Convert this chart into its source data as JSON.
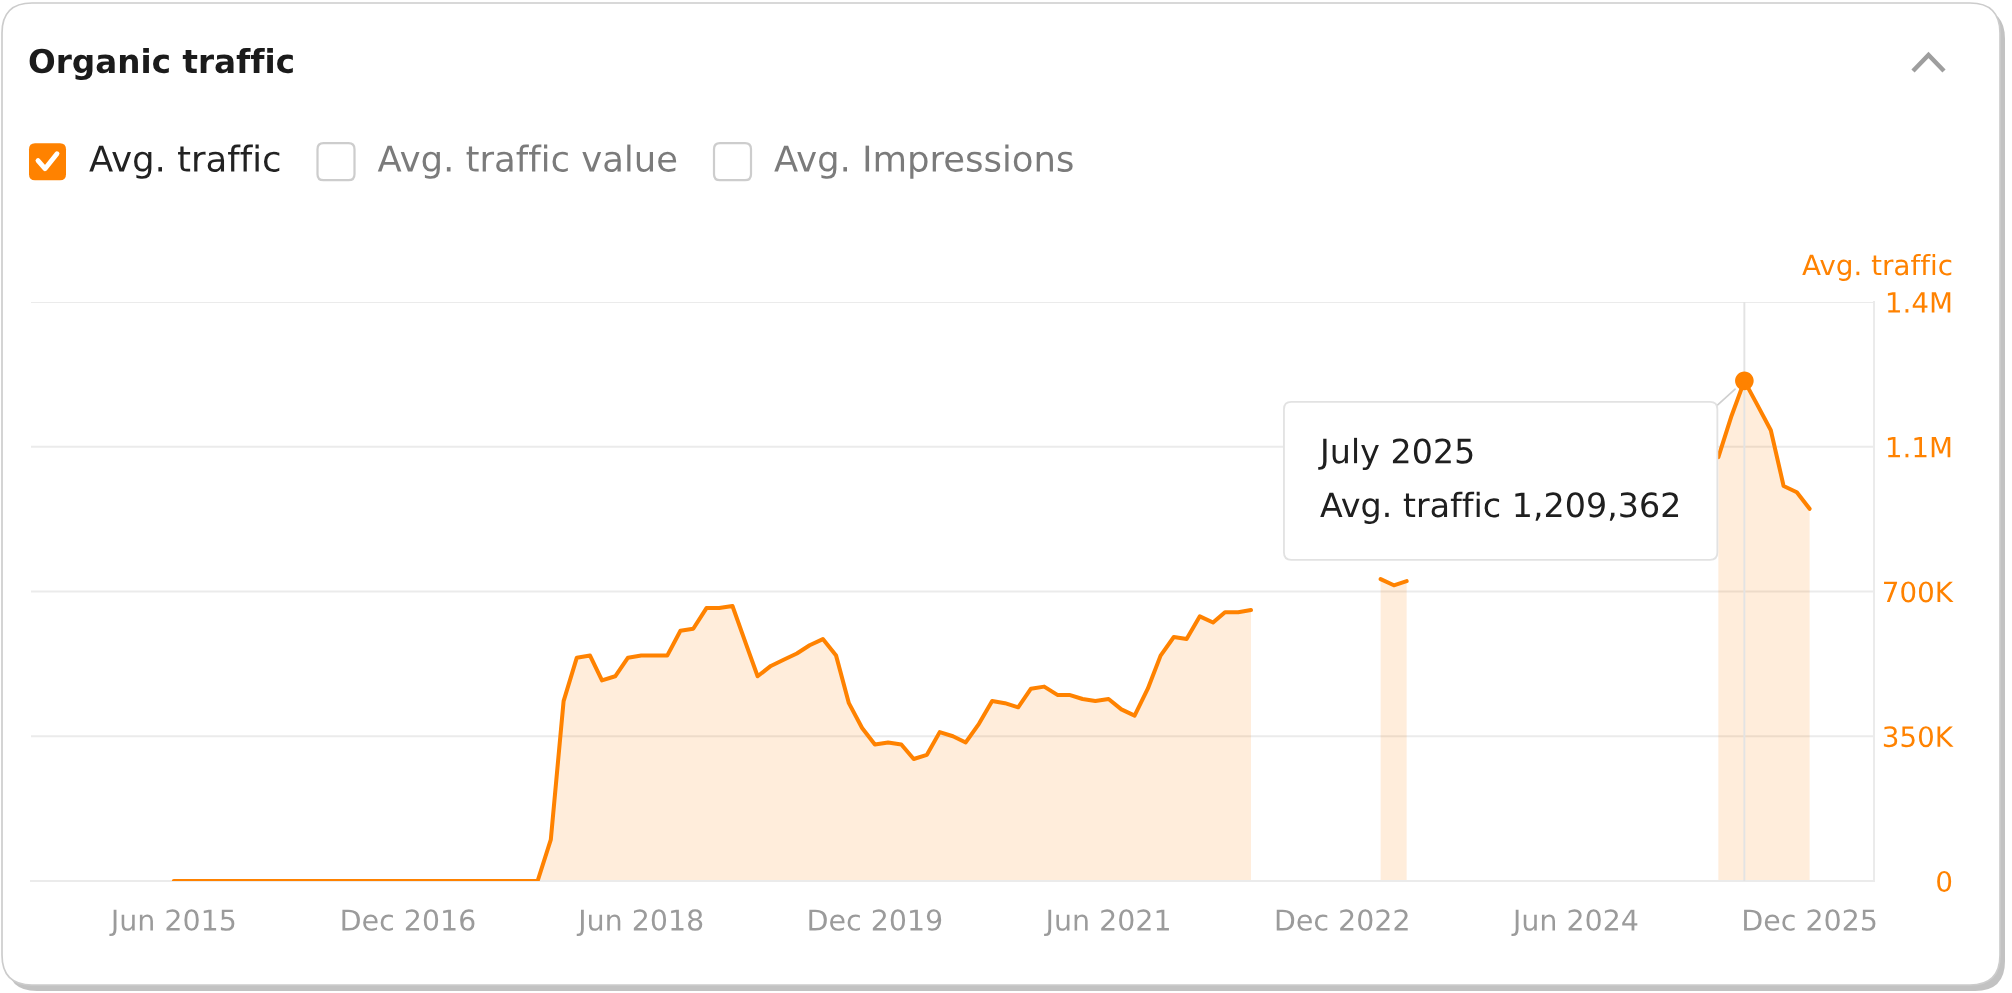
{
  "chart_data": {
    "type": "area",
    "title": "Organic traffic",
    "ylabel": "Avg. traffic",
    "xlim": [
      "2014-07",
      "2026-05"
    ],
    "xticks": [
      {
        "value": "2015-06",
        "label": "Jun 2015"
      },
      {
        "value": "2016-12",
        "label": "Dec 2016"
      },
      {
        "value": "2018-06",
        "label": "Jun 2018"
      },
      {
        "value": "2019-12",
        "label": "Dec 2019"
      },
      {
        "value": "2021-06",
        "label": "Jun 2021"
      },
      {
        "value": "2022-12",
        "label": "Dec 2022"
      },
      {
        "value": "2024-06",
        "label": "Jun 2024"
      },
      {
        "value": "2025-12",
        "label": "Dec 2025"
      }
    ],
    "ylim": [
      0,
      1400000
    ],
    "yticks": [
      0,
      {
        "value": 350000,
        "label": "350K"
      },
      {
        "value": 700000,
        "label": "700K"
      },
      {
        "value": 1050000,
        "label": "1.1M"
      },
      {
        "value": 1400000,
        "label": "1.4M"
      }
    ],
    "grid": "y",
    "legend": "top left",
    "series": [
      {
        "name": "Avg. traffic",
        "color": "#ff8200",
        "x": [
          "2015-06",
          "2017-10",
          "2017-11",
          "2017-12",
          "2018-01",
          "2018-02",
          "2018-03",
          "2018-04",
          "2018-05",
          "2018-06",
          "2018-07",
          "2018-08",
          "2018-09",
          "2018-10",
          "2018-11",
          "2018-12",
          "2019-01",
          "2019-02",
          "2019-03",
          "2019-04",
          "2019-05",
          "2019-06",
          "2019-07",
          "2019-08",
          "2019-09",
          "2019-10",
          "2019-11",
          "2019-12",
          "2020-01",
          "2020-02",
          "2020-03",
          "2020-04",
          "2020-05",
          "2020-06",
          "2020-07",
          "2020-08",
          "2020-09",
          "2020-10",
          "2020-11",
          "2020-12",
          "2021-01",
          "2021-02",
          "2021-03",
          "2021-04",
          "2021-05",
          "2021-06",
          "2021-07",
          "2021-08",
          "2021-09",
          "2021-10",
          "2021-11",
          "2021-12",
          "2022-01",
          "2022-02",
          "2022-03",
          "2022-04",
          "2022-05",
          "2022-06",
          "2022-07",
          "2022-08",
          "2022-09",
          "2022-10",
          "2022-11",
          "2022-12",
          "2023-01",
          "2023-02",
          "2023-03",
          "2023-04",
          "2023-05",
          "2023-06",
          "2023-07",
          "2023-08",
          "2023-09",
          "2023-10",
          "2023-11",
          "2023-12",
          "2024-01",
          "2024-02",
          "2024-03",
          "2024-04",
          "2024-05",
          "2024-06",
          "2024-07",
          "2024-08",
          "2024-09",
          "2024-10",
          "2024-11",
          "2024-12",
          "2025-01",
          "2025-02",
          "2025-03",
          "2025-04",
          "2025-05",
          "2025-06",
          "2025-07",
          "2025-08",
          "2025-09",
          "2025-10",
          "2025-11",
          "2025-12"
        ],
        "values": [
          0,
          0,
          100000,
          435000,
          540000,
          545000,
          485000,
          495000,
          540000,
          545000,
          545000,
          545000,
          605000,
          610000,
          660000,
          660000,
          665000,
          575000,
          495000,
          520000,
          535000,
          550000,
          570000,
          585000,
          545000,
          430000,
          370000,
          330000,
          335000,
          330000,
          295000,
          305000,
          360000,
          350000,
          335000,
          380000,
          435000,
          430000,
          420000,
          465000,
          470000,
          450000,
          450000,
          440000,
          435000,
          440000,
          415000,
          400000,
          465000,
          545000,
          590000,
          585000,
          640000,
          625000,
          650000,
          650000,
          655000,
          null,
          null,
          null,
          null,
          null,
          null,
          null,
          null,
          null,
          730000,
          715000,
          725000,
          null,
          null,
          null,
          null,
          null,
          null,
          null,
          null,
          null,
          null,
          null,
          null,
          null,
          null,
          null,
          null,
          null,
          null,
          null,
          null,
          null,
          null,
          null,
          1025000,
          1125000,
          1209362,
          1150000,
          1090000,
          955000,
          940000,
          900000
        ]
      },
      {
        "type": "scatter",
        "color": "#ff8200",
        "marker": "circle",
        "x": [
          "2025-07"
        ],
        "values": [
          1209362
        ]
      }
    ],
    "ref_lines": [
      {
        "axis": "x",
        "value": "2025-07",
        "color": "#e3e3e3"
      }
    ],
    "annotations": [
      "Avg. traffic value",
      "Avg. Impressions",
      {
        "text": "July 2025\nAvg. traffic 1,209,362",
        "x": "2025-07",
        "y": 1209362
      }
    ]
  }
}
